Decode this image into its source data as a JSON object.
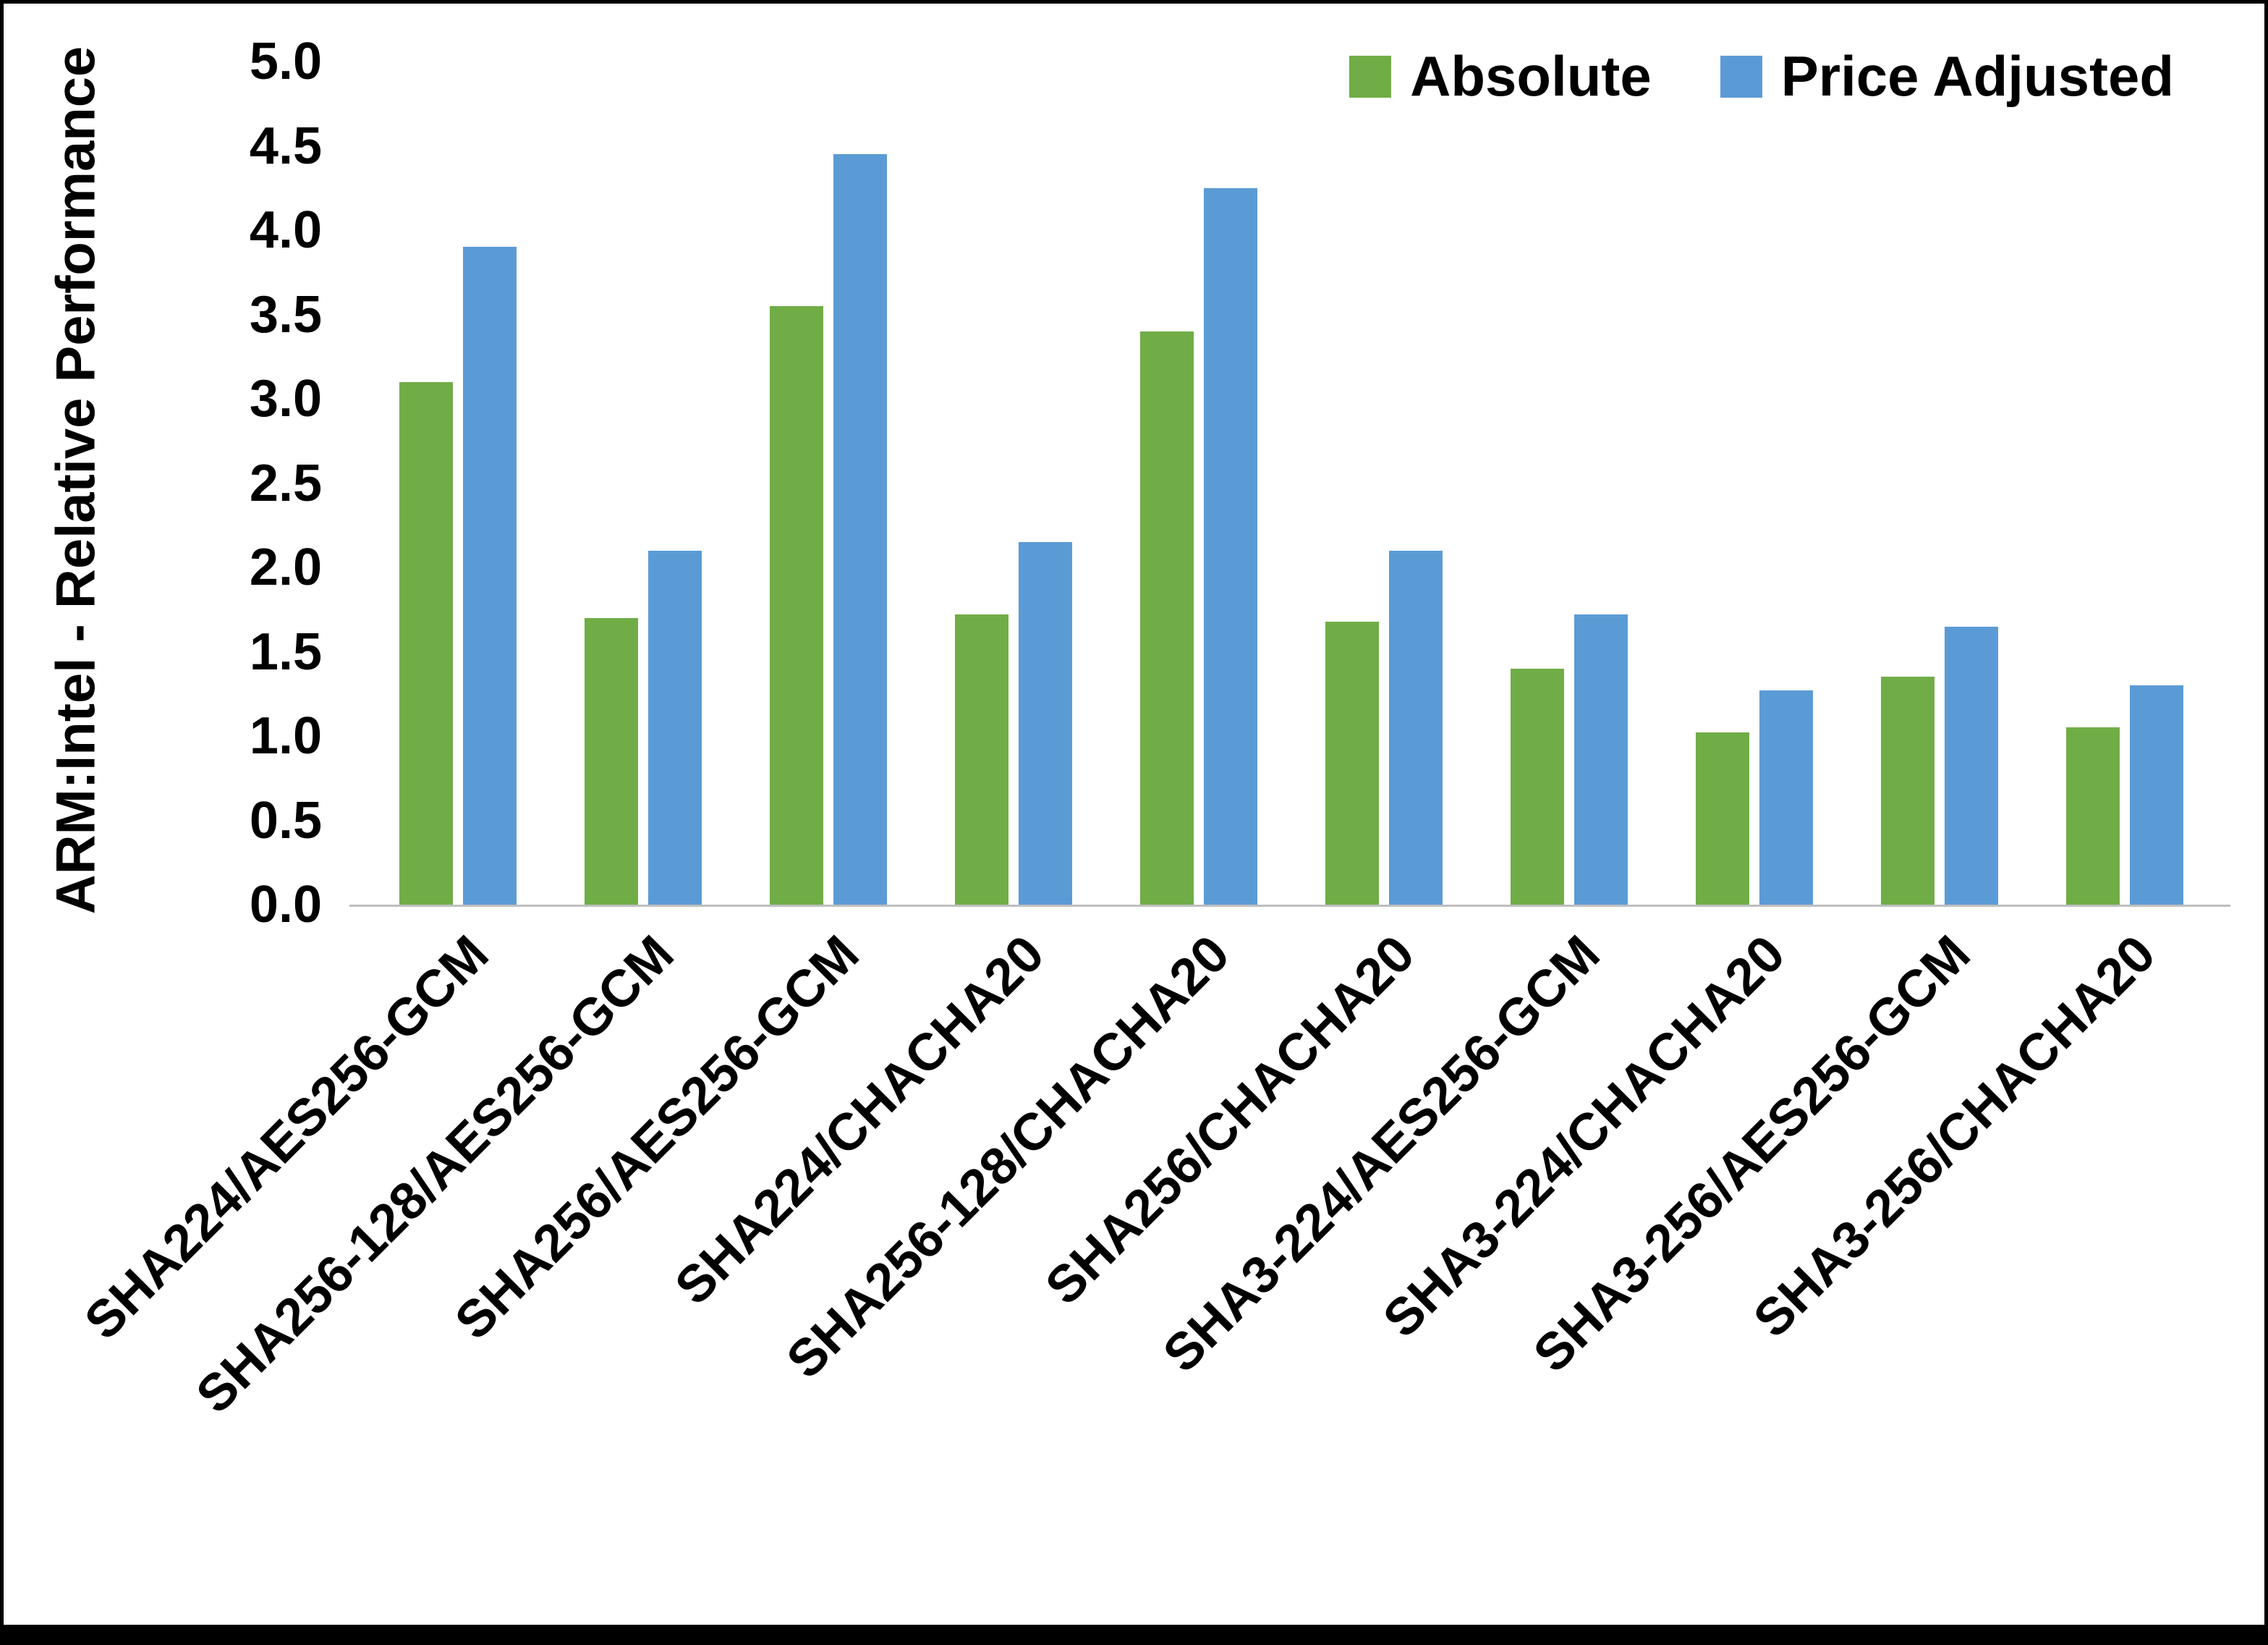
{
  "chart_data": {
    "type": "bar",
    "title": "",
    "xlabel": "",
    "ylabel": "ARM:Intel - Relative Performance",
    "ylim": [
      0,
      5.0
    ],
    "ytick_step": 0.5,
    "grid": false,
    "legend_position": "top-right",
    "categories": [
      "SHA224/AES256-GCM",
      "SHA256-128/AES256-GCM",
      "SHA256/AES256-GCM",
      "SHA224/CHACHA20",
      "SHA256-128/CHACHA20",
      "SHA256/CHACHA20",
      "SHA3-224/AES256-GCM",
      "SHA3-224/CHACHA20",
      "SHA3-256/AES256-GCM",
      "SHA3-256/CHACHA20"
    ],
    "series": [
      {
        "name": "Absolute",
        "color": "#70AD47",
        "values": [
          3.1,
          1.7,
          3.55,
          1.72,
          3.4,
          1.68,
          1.4,
          1.02,
          1.35,
          1.05
        ]
      },
      {
        "name": "Price Adjusted",
        "color": "#5B9BD5",
        "values": [
          3.9,
          2.1,
          4.45,
          2.15,
          4.25,
          2.1,
          1.72,
          1.27,
          1.65,
          1.3
        ]
      }
    ]
  }
}
